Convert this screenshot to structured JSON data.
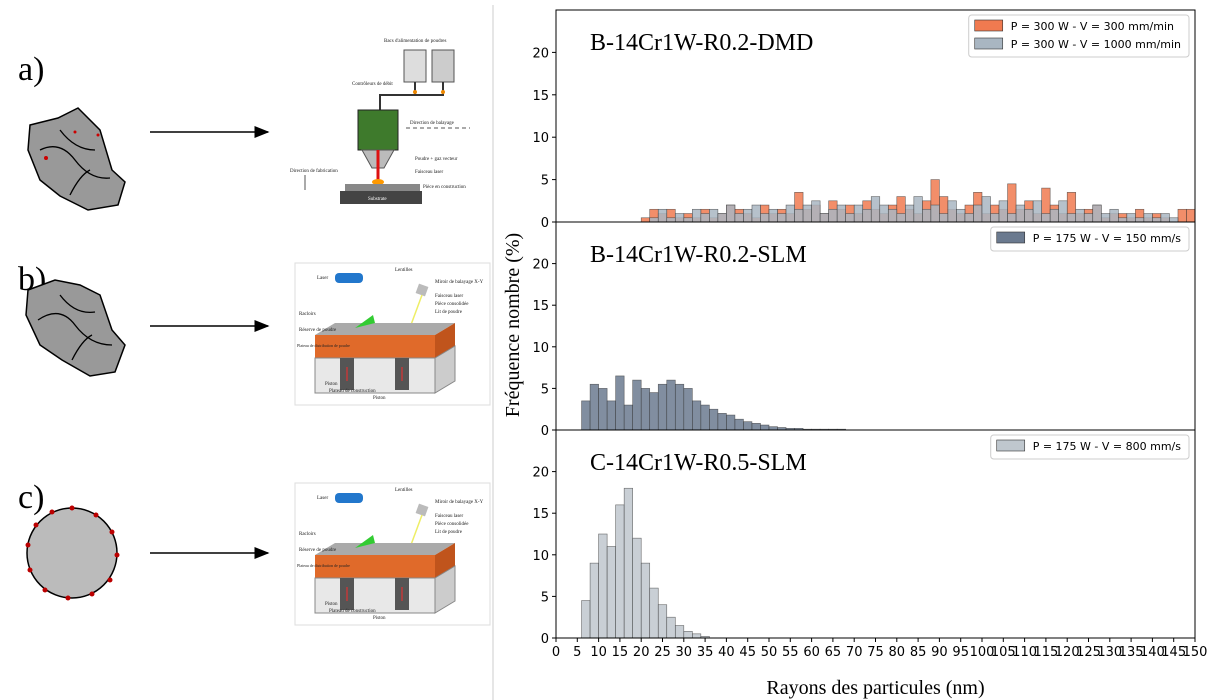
{
  "panels": [
    {
      "label": "a)"
    },
    {
      "label": "b)"
    },
    {
      "label": "c)"
    }
  ],
  "diagrams": {
    "dmd": {
      "labels": [
        "Bacs d'alimentation de poudres",
        "Contrôleurs de débit",
        "Direction de balayage",
        "Poudre + gaz vecteur",
        "Faisceau laser",
        "Direction de fabrication",
        "Pièce en construction",
        "Substrate"
      ]
    },
    "slm": {
      "labels": [
        "Laser",
        "Lentilles",
        "Miroir de balayage X-Y",
        "Faisceau laser",
        "Pièce consolidée",
        "Lit de poudre",
        "Racloirs",
        "Réserve de poudre",
        "Plateau de distribution de poudre",
        "Piston",
        "Plateau de construction",
        "Piston"
      ]
    }
  },
  "chart_data": [
    {
      "type": "histogram",
      "title": "B-14Cr1W-R0.2-DMD",
      "xlim": [
        0,
        150
      ],
      "ylim": [
        0,
        25
      ],
      "yticks": [
        0,
        5,
        10,
        15,
        20
      ],
      "bins": [
        6,
        8,
        10,
        12,
        14,
        16,
        18,
        20,
        22,
        24,
        26,
        28,
        30,
        32,
        34,
        36,
        38,
        40,
        42,
        44,
        46,
        48,
        50,
        52,
        54,
        56,
        58,
        60,
        62,
        64,
        66,
        68,
        70,
        72,
        74,
        76,
        78,
        80,
        82,
        84,
        86,
        88,
        90,
        92,
        94,
        96,
        98,
        100,
        102,
        104,
        106,
        108,
        110,
        112,
        114,
        116,
        118,
        120,
        122,
        124,
        126,
        128,
        130,
        132,
        134,
        136,
        138,
        140,
        142,
        144,
        146,
        148,
        150
      ],
      "series": [
        {
          "name": "P = 300 W - V = 300 mm/min",
          "color": "#f07a50",
          "values": [
            0,
            0,
            0,
            0,
            0,
            0,
            0,
            0.5,
            1.5,
            1,
            1.5,
            0.5,
            1,
            0.5,
            1.5,
            0.5,
            1,
            2,
            1.5,
            1,
            0.5,
            2,
            1,
            1.5,
            1,
            3.5,
            1.5,
            2,
            1,
            2.5,
            1.5,
            2,
            1,
            2.5,
            1.5,
            1,
            2,
            3,
            1.5,
            1,
            2.5,
            5,
            3,
            1.5,
            1,
            2,
            3.5,
            1,
            2,
            1.5,
            4.5,
            1.5,
            2.5,
            1,
            4,
            2,
            1,
            3.5,
            1,
            1.5,
            2,
            0.5,
            1,
            1,
            0.5,
            1.5,
            0.5,
            1,
            0.5,
            0,
            1.5,
            1.5
          ]
        },
        {
          "name": "P = 300 W - V = 1000 mm/min",
          "color": "#a9b6c2",
          "values": [
            0,
            0,
            0,
            0,
            0,
            0,
            0,
            0,
            0.5,
            1.5,
            0.5,
            1,
            0.5,
            1.5,
            1,
            1.5,
            1,
            2,
            1,
            1.5,
            2,
            1,
            1.5,
            1,
            2,
            1.5,
            2,
            2.5,
            1,
            1.5,
            2,
            1,
            2,
            1.5,
            3,
            2,
            1.5,
            1,
            2,
            3,
            1.5,
            2,
            1,
            2.5,
            1.5,
            1,
            2,
            3,
            1,
            2.5,
            1,
            2,
            1.5,
            2.5,
            1,
            1.5,
            2.5,
            1,
            1.5,
            1,
            2,
            1,
            1.5,
            0.5,
            1,
            0.5,
            1,
            0.5,
            1,
            0.5,
            0,
            0
          ]
        }
      ]
    },
    {
      "type": "histogram",
      "title": "B-14Cr1W-R0.2-SLM",
      "ylabel": "Fréquence nombre (%)",
      "xlim": [
        0,
        150
      ],
      "ylim": [
        0,
        25
      ],
      "yticks": [
        0,
        5,
        10,
        15,
        20
      ],
      "bins": [
        6,
        8,
        10,
        12,
        14,
        16,
        18,
        20,
        22,
        24,
        26,
        28,
        30,
        32,
        34,
        36,
        38,
        40,
        42,
        44,
        46,
        48,
        50,
        52,
        54,
        56,
        58,
        60,
        62,
        64,
        66,
        68,
        70,
        72,
        74,
        76,
        78,
        80,
        82,
        84,
        86,
        88,
        90,
        92,
        94,
        96,
        98,
        100,
        102,
        104,
        106,
        108,
        110,
        112,
        114,
        116,
        118,
        120,
        122,
        124,
        126,
        128,
        130,
        132,
        134,
        136,
        138,
        140,
        142,
        144,
        146,
        148,
        150
      ],
      "series": [
        {
          "name": "P = 175 W - V = 150 mm/s",
          "color": "#6b7a8f",
          "values": [
            3.5,
            5.5,
            5,
            3.5,
            6.5,
            3,
            6,
            5,
            4.5,
            5.5,
            6,
            5.5,
            5,
            3.5,
            3,
            2.5,
            2,
            1.8,
            1.3,
            1,
            0.8,
            0.6,
            0.4,
            0.3,
            0.2,
            0.2,
            0.1,
            0.1,
            0.1,
            0.1,
            0.1,
            0,
            0,
            0,
            0,
            0,
            0,
            0,
            0,
            0,
            0,
            0,
            0,
            0,
            0,
            0,
            0,
            0,
            0,
            0,
            0,
            0,
            0,
            0,
            0,
            0,
            0,
            0,
            0,
            0,
            0,
            0,
            0,
            0,
            0,
            0,
            0,
            0,
            0,
            0,
            0,
            0
          ]
        }
      ]
    },
    {
      "type": "histogram",
      "title": "C-14Cr1W-R0.5-SLM",
      "xlabel": "Rayons des particules (nm)",
      "xlim": [
        0,
        150
      ],
      "ylim": [
        0,
        25
      ],
      "yticks": [
        0,
        5,
        10,
        15,
        20
      ],
      "xticks": [
        0,
        5,
        10,
        15,
        20,
        25,
        30,
        35,
        40,
        45,
        50,
        55,
        60,
        65,
        70,
        75,
        80,
        85,
        90,
        95,
        100,
        105,
        110,
        115,
        120,
        125,
        130,
        135,
        140,
        145,
        150
      ],
      "bins": [
        6,
        8,
        10,
        12,
        14,
        16,
        18,
        20,
        22,
        24,
        26,
        28,
        30,
        32,
        34,
        36,
        38,
        40,
        42,
        44,
        46,
        48,
        50,
        52,
        54,
        56,
        58,
        60,
        62,
        64,
        66,
        68,
        70,
        72,
        74,
        76,
        78,
        80,
        82,
        84,
        86,
        88,
        90,
        92,
        94,
        96,
        98,
        100,
        102,
        104,
        106,
        108,
        110,
        112,
        114,
        116,
        118,
        120,
        122,
        124,
        126,
        128,
        130,
        132,
        134,
        136,
        138,
        140,
        142,
        144,
        146,
        148,
        150
      ],
      "series": [
        {
          "name": "P = 175 W - V = 800 mm/s",
          "color": "#bfc7ce",
          "values": [
            4.5,
            9,
            12.5,
            11,
            16,
            18,
            12,
            9,
            6,
            4,
            2.5,
            1.5,
            0.8,
            0.5,
            0.2,
            0,
            0,
            0,
            0,
            0,
            0,
            0,
            0,
            0,
            0,
            0,
            0,
            0,
            0,
            0,
            0,
            0,
            0,
            0,
            0,
            0,
            0,
            0,
            0,
            0,
            0,
            0,
            0,
            0,
            0,
            0,
            0,
            0,
            0,
            0,
            0,
            0,
            0,
            0,
            0,
            0,
            0,
            0,
            0,
            0,
            0,
            0,
            0,
            0,
            0,
            0,
            0,
            0,
            0,
            0,
            0,
            0
          ]
        }
      ]
    }
  ]
}
